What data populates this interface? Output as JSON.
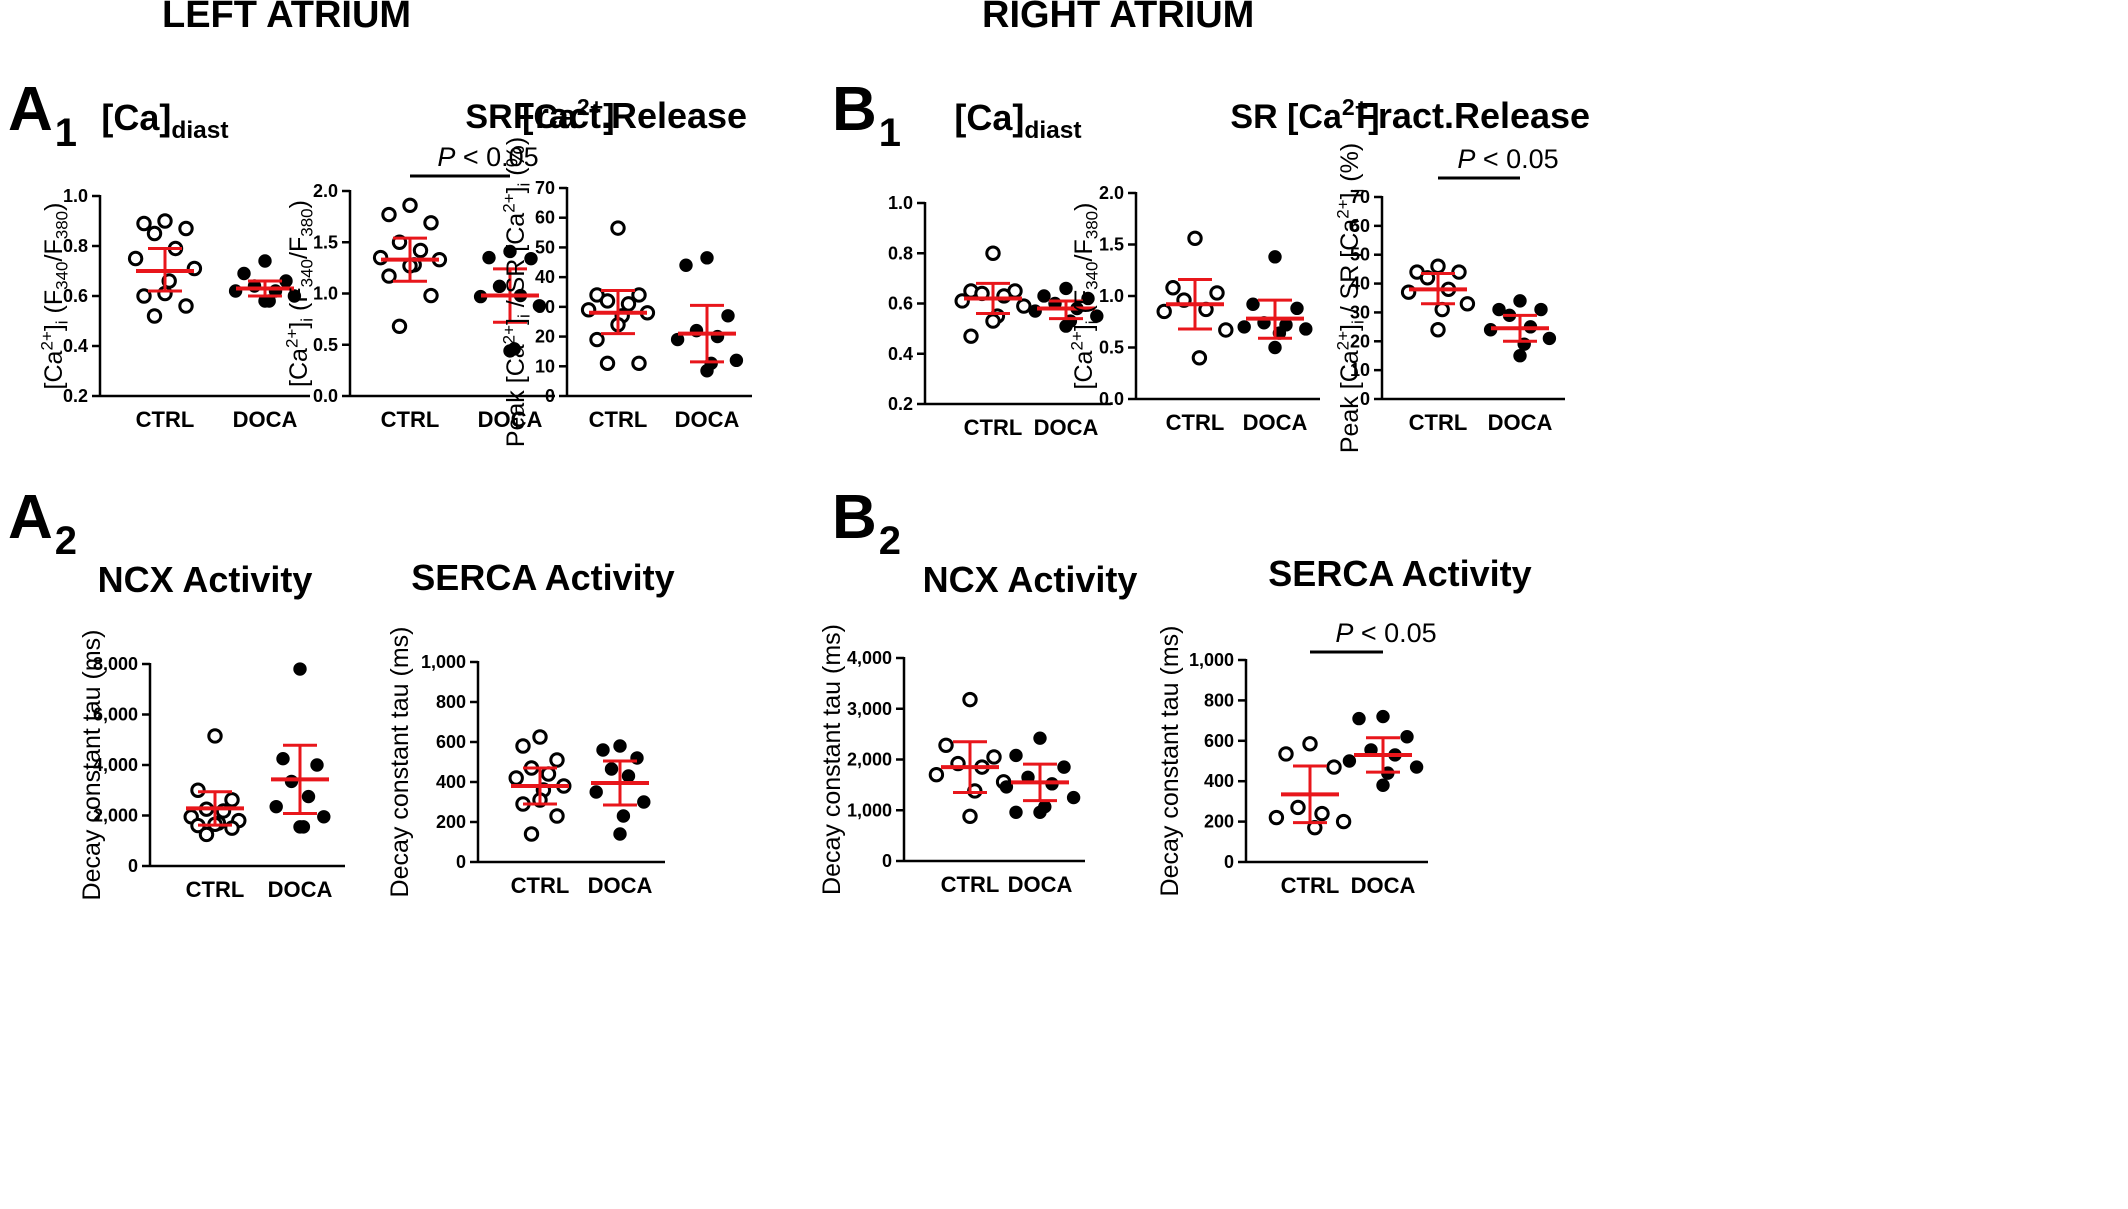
{
  "sections": [
    {
      "id": "left",
      "title": "LEFT ATRIUM"
    },
    {
      "id": "right",
      "title": "RIGHT ATRIUM"
    }
  ],
  "panel_labels": [
    {
      "letter": "A",
      "sub": "1"
    },
    {
      "letter": "A",
      "sub": "2"
    },
    {
      "letter": "B",
      "sub": "1"
    },
    {
      "letter": "B",
      "sub": "2"
    }
  ],
  "colors": {
    "mean_sd": "#e8161b",
    "marker": "#000000"
  },
  "chart_data": [
    {
      "type": "scatter",
      "section": "LEFT ATRIUM",
      "panel": "A1",
      "title": [
        {
          "t": "[Ca]"
        },
        {
          "t": "diast",
          "s": "sub"
        }
      ],
      "ylabel": [
        {
          "t": "[Ca"
        },
        {
          "t": "2+",
          "s": "sup"
        },
        {
          "t": "]"
        },
        {
          "t": "i",
          "s": "sub"
        },
        {
          "t": " (F"
        },
        {
          "t": "340",
          "s": "sub"
        },
        {
          "t": "/F"
        },
        {
          "t": "380",
          "s": "sub"
        },
        {
          "t": ")"
        }
      ],
      "categories": [
        "CTRL",
        "DOCA"
      ],
      "ylim": [
        0.2,
        1.0
      ],
      "yticks": [
        0.2,
        0.4,
        0.6,
        0.8,
        1.0
      ],
      "ytick_labels": [
        "0.2",
        "0.4",
        "0.6",
        "0.8",
        "1.0"
      ],
      "series": [
        {
          "category": "CTRL",
          "filled": false,
          "mean": 0.7,
          "sd_low": 0.62,
          "sd_high": 0.79,
          "values": [
            0.9,
            0.89,
            0.87,
            0.85,
            0.79,
            0.75,
            0.71,
            0.66,
            0.61,
            0.6,
            0.56,
            0.52
          ]
        },
        {
          "category": "DOCA",
          "filled": true,
          "mean": 0.63,
          "sd_low": 0.6,
          "sd_high": 0.66,
          "values": [
            0.74,
            0.69,
            0.66,
            0.64,
            0.62,
            0.62,
            0.6,
            0.58,
            0.58
          ]
        }
      ]
    },
    {
      "type": "scatter",
      "section": "LEFT ATRIUM",
      "panel": "A1",
      "title": [
        {
          "t": "SR [Ca"
        },
        {
          "t": "2+",
          "s": "sup"
        },
        {
          "t": "]"
        }
      ],
      "ylabel": [
        {
          "t": "[Ca"
        },
        {
          "t": "2+",
          "s": "sup"
        },
        {
          "t": "]"
        },
        {
          "t": "i",
          "s": "sub"
        },
        {
          "t": " (F"
        },
        {
          "t": "340",
          "s": "sub"
        },
        {
          "t": "/F"
        },
        {
          "t": "380",
          "s": "sub"
        },
        {
          "t": ")"
        }
      ],
      "categories": [
        "CTRL",
        "DOCA"
      ],
      "ylim": [
        0,
        2.0
      ],
      "yticks": [
        0,
        0.5,
        1.0,
        1.5,
        2.0
      ],
      "ytick_labels": [
        "0.0",
        "0.5",
        "1.0",
        "1.5",
        "2.0"
      ],
      "significance": {
        "text": "P < 0.05"
      },
      "series": [
        {
          "category": "CTRL",
          "filled": false,
          "mean": 1.33,
          "sd_low": 1.12,
          "sd_high": 1.54,
          "values": [
            1.86,
            1.77,
            1.69,
            1.5,
            1.42,
            1.35,
            1.33,
            1.28,
            1.27,
            1.17,
            0.98,
            0.68
          ]
        },
        {
          "category": "DOCA",
          "filled": true,
          "mean": 0.98,
          "sd_low": 0.72,
          "sd_high": 1.24,
          "values": [
            1.41,
            1.35,
            1.34,
            1.07,
            0.98,
            0.97,
            0.88,
            0.46,
            0.44
          ]
        }
      ]
    },
    {
      "type": "scatter",
      "section": "LEFT ATRIUM",
      "panel": "A1",
      "title": [
        {
          "t": "Fract.Release"
        }
      ],
      "ylabel": [
        {
          "t": "Peak [Ca"
        },
        {
          "t": "2+",
          "s": "sup"
        },
        {
          "t": "]"
        },
        {
          "t": "i",
          "s": "sub"
        },
        {
          "t": " / SR [Ca"
        },
        {
          "t": "2+",
          "s": "sup"
        },
        {
          "t": "]"
        },
        {
          "t": "i",
          "s": "sub"
        },
        {
          "t": " (%)"
        }
      ],
      "categories": [
        "CTRL",
        "DOCA"
      ],
      "ylim": [
        0,
        70
      ],
      "yticks": [
        0,
        10,
        20,
        30,
        40,
        50,
        60,
        70
      ],
      "ytick_labels": [
        "0",
        "10",
        "20",
        "30",
        "40",
        "50",
        "60",
        "70"
      ],
      "series": [
        {
          "category": "CTRL",
          "filled": false,
          "mean": 28,
          "sd_low": 21,
          "sd_high": 35.5,
          "values": [
            56.5,
            34,
            34,
            32,
            31,
            29,
            28,
            27,
            24,
            19,
            11,
            11
          ]
        },
        {
          "category": "DOCA",
          "filled": true,
          "mean": 21,
          "sd_low": 11.5,
          "sd_high": 30.5,
          "values": [
            46.5,
            44,
            27,
            22,
            20,
            19,
            12,
            11,
            8.5
          ]
        }
      ]
    },
    {
      "type": "scatter",
      "section": "LEFT ATRIUM",
      "panel": "A2",
      "title": [
        {
          "t": "NCX Activity"
        }
      ],
      "ylabel": [
        {
          "t": "Decay constant tau (ms)"
        }
      ],
      "categories": [
        "CTRL",
        "DOCA"
      ],
      "ylim": [
        0,
        8000
      ],
      "yticks": [
        0,
        2000,
        4000,
        6000,
        8000
      ],
      "ytick_labels": [
        "0",
        "2,000",
        "4,000",
        "6,000",
        "8,000"
      ],
      "series": [
        {
          "category": "CTRL",
          "filled": false,
          "mean": 2280,
          "sd_low": 1620,
          "sd_high": 2940,
          "values": [
            5150,
            3000,
            2620,
            2250,
            2180,
            1950,
            1800,
            1700,
            1650,
            1600,
            1500,
            1250
          ]
        },
        {
          "category": "DOCA",
          "filled": true,
          "mean": 3430,
          "sd_low": 2080,
          "sd_high": 4780,
          "values": [
            7800,
            4250,
            4000,
            3350,
            2750,
            2350,
            1950,
            1550,
            1550
          ]
        }
      ]
    },
    {
      "type": "scatter",
      "section": "LEFT ATRIUM",
      "panel": "A2",
      "title": [
        {
          "t": "SERCA Activity"
        }
      ],
      "ylabel": [
        {
          "t": "Decay constant tau (ms)"
        }
      ],
      "categories": [
        "CTRL",
        "DOCA"
      ],
      "ylim": [
        0,
        1000
      ],
      "yticks": [
        0,
        200,
        400,
        600,
        800,
        1000
      ],
      "ytick_labels": [
        "0",
        "200",
        "400",
        "600",
        "800",
        "1,000"
      ],
      "series": [
        {
          "category": "CTRL",
          "filled": false,
          "mean": 380,
          "sd_low": 290,
          "sd_high": 470,
          "values": [
            625,
            580,
            510,
            470,
            440,
            420,
            380,
            360,
            310,
            290,
            230,
            140
          ]
        },
        {
          "category": "DOCA",
          "filled": true,
          "mean": 395,
          "sd_low": 285,
          "sd_high": 505,
          "values": [
            580,
            560,
            520,
            465,
            430,
            350,
            300,
            230,
            140
          ]
        }
      ]
    },
    {
      "type": "scatter",
      "section": "RIGHT ATRIUM",
      "panel": "B1",
      "title": [
        {
          "t": "[Ca]"
        },
        {
          "t": "diast",
          "s": "sub"
        }
      ],
      "ylabel": [],
      "categories": [
        "CTRL",
        "DOCA"
      ],
      "ylim": [
        0.2,
        1.0
      ],
      "yticks": [
        0.2,
        0.4,
        0.6,
        0.8,
        1.0
      ],
      "ytick_labels": [
        "0.2",
        "0.4",
        "0.6",
        "0.8",
        "1.0"
      ],
      "series": [
        {
          "category": "CTRL",
          "filled": false,
          "mean": 0.62,
          "sd_low": 0.56,
          "sd_high": 0.68,
          "values": [
            0.8,
            0.65,
            0.65,
            0.64,
            0.63,
            0.61,
            0.59,
            0.55,
            0.53,
            0.47
          ]
        },
        {
          "category": "DOCA",
          "filled": true,
          "mean": 0.58,
          "sd_low": 0.54,
          "sd_high": 0.61,
          "values": [
            0.66,
            0.63,
            0.62,
            0.6,
            0.58,
            0.57,
            0.55,
            0.53,
            0.51
          ]
        }
      ]
    },
    {
      "type": "scatter",
      "section": "RIGHT ATRIUM",
      "panel": "B1",
      "title": [
        {
          "t": "SR [Ca"
        },
        {
          "t": "2+",
          "s": "sup"
        },
        {
          "t": "]"
        }
      ],
      "ylabel": [
        {
          "t": "[Ca"
        },
        {
          "t": "2+",
          "s": "sup"
        },
        {
          "t": "]"
        },
        {
          "t": "i",
          "s": "sub"
        },
        {
          "t": " (F"
        },
        {
          "t": "340",
          "s": "sub"
        },
        {
          "t": "/F"
        },
        {
          "t": "380",
          "s": "sub"
        },
        {
          "t": ")"
        }
      ],
      "categories": [
        "CTRL",
        "DOCA"
      ],
      "ylim": [
        0,
        2.0
      ],
      "yticks": [
        0,
        0.5,
        1.0,
        1.5,
        2.0
      ],
      "ytick_labels": [
        "0.0",
        "0.5",
        "1.0",
        "1.5",
        "2.0"
      ],
      "series": [
        {
          "category": "CTRL",
          "filled": false,
          "mean": 0.92,
          "sd_low": 0.68,
          "sd_high": 1.16,
          "values": [
            1.56,
            1.08,
            1.03,
            0.96,
            0.87,
            0.85,
            0.67,
            0.4
          ]
        },
        {
          "category": "DOCA",
          "filled": true,
          "mean": 0.78,
          "sd_low": 0.59,
          "sd_high": 0.96,
          "values": [
            1.38,
            0.92,
            0.88,
            0.74,
            0.72,
            0.7,
            0.68,
            0.64,
            0.5
          ]
        }
      ]
    },
    {
      "type": "scatter",
      "section": "RIGHT ATRIUM",
      "panel": "B1",
      "title": [
        {
          "t": "Fract.Release"
        }
      ],
      "ylabel": [
        {
          "t": "Peak [Ca"
        },
        {
          "t": "2+",
          "s": "sup"
        },
        {
          "t": "]"
        },
        {
          "t": "i",
          "s": "sub"
        },
        {
          "t": " / SR [Ca"
        },
        {
          "t": "2+",
          "s": "sup"
        },
        {
          "t": "]"
        },
        {
          "t": "i",
          "s": "sub"
        },
        {
          "t": " (%)"
        }
      ],
      "categories": [
        "CTRL",
        "DOCA"
      ],
      "ylim": [
        0,
        70
      ],
      "yticks": [
        0,
        10,
        20,
        30,
        40,
        50,
        60,
        70
      ],
      "ytick_labels": [
        "0",
        "10",
        "20",
        "30",
        "40",
        "50",
        "60",
        "70"
      ],
      "significance": {
        "text": "P < 0.05"
      },
      "series": [
        {
          "category": "CTRL",
          "filled": false,
          "mean": 38,
          "sd_low": 33,
          "sd_high": 43.5,
          "values": [
            46,
            44,
            44,
            42,
            38,
            37,
            33,
            31,
            24
          ]
        },
        {
          "category": "DOCA",
          "filled": true,
          "mean": 24.5,
          "sd_low": 20,
          "sd_high": 29,
          "values": [
            34,
            31,
            31,
            29,
            25,
            24,
            21,
            19,
            15
          ]
        }
      ]
    },
    {
      "type": "scatter",
      "section": "RIGHT ATRIUM",
      "panel": "B2",
      "title": [
        {
          "t": "NCX Activity"
        }
      ],
      "ylabel": [
        {
          "t": "Decay constant tau (ms)"
        }
      ],
      "categories": [
        "CTRL",
        "DOCA"
      ],
      "ylim": [
        0,
        4000
      ],
      "yticks": [
        0,
        1000,
        2000,
        3000,
        4000
      ],
      "ytick_labels": [
        "0",
        "1,000",
        "2,000",
        "3,000",
        "4,000"
      ],
      "series": [
        {
          "category": "CTRL",
          "filled": false,
          "mean": 1850,
          "sd_low": 1350,
          "sd_high": 2350,
          "values": [
            3180,
            2280,
            2050,
            1920,
            1850,
            1700,
            1560,
            1380,
            880
          ]
        },
        {
          "category": "DOCA",
          "filled": true,
          "mean": 1550,
          "sd_low": 1190,
          "sd_high": 1910,
          "values": [
            2420,
            2080,
            1850,
            1650,
            1520,
            1460,
            1250,
            1070,
            960,
            960
          ]
        }
      ]
    },
    {
      "type": "scatter",
      "section": "RIGHT ATRIUM",
      "panel": "B2",
      "title": [
        {
          "t": "SERCA Activity"
        }
      ],
      "ylabel": [
        {
          "t": "Decay constant tau (ms)"
        }
      ],
      "categories": [
        "CTRL",
        "DOCA"
      ],
      "ylim": [
        0,
        1000
      ],
      "yticks": [
        0,
        200,
        400,
        600,
        800,
        1000
      ],
      "ytick_labels": [
        "0",
        "200",
        "400",
        "600",
        "800",
        "1,000"
      ],
      "significance": {
        "text": "P < 0.05"
      },
      "series": [
        {
          "category": "CTRL",
          "filled": false,
          "mean": 335,
          "sd_low": 195,
          "sd_high": 475,
          "values": [
            585,
            535,
            470,
            270,
            240,
            220,
            200,
            170
          ]
        },
        {
          "category": "DOCA",
          "filled": true,
          "mean": 530,
          "sd_low": 445,
          "sd_high": 615,
          "values": [
            720,
            710,
            620,
            555,
            530,
            500,
            470,
            440,
            380
          ]
        }
      ]
    }
  ]
}
